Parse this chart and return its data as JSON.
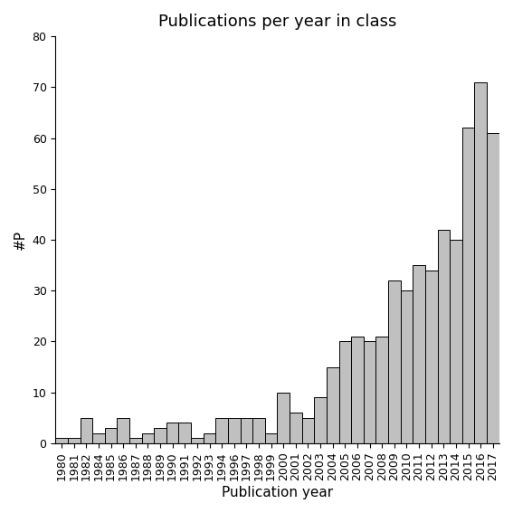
{
  "title": "Publications per year in class",
  "xlabel": "Publication year",
  "ylabel": "#P",
  "ylim": [
    0,
    80
  ],
  "yticks": [
    0,
    10,
    20,
    30,
    40,
    50,
    60,
    70,
    80
  ],
  "bar_color": "#c0c0c0",
  "bar_edgecolor": "#000000",
  "years": [
    1980,
    1981,
    1982,
    1984,
    1985,
    1986,
    1987,
    1988,
    1989,
    1990,
    1991,
    1992,
    1993,
    1994,
    1996,
    1997,
    1998,
    1999,
    2000,
    2001,
    2002,
    2003,
    2004,
    2005,
    2006,
    2007,
    2008,
    2009,
    2010,
    2011,
    2012,
    2013,
    2014,
    2015,
    2016,
    2017
  ],
  "values": [
    1,
    1,
    5,
    2,
    3,
    5,
    1,
    2,
    3,
    4,
    4,
    1,
    2,
    5,
    5,
    5,
    5,
    2,
    10,
    6,
    5,
    9,
    15,
    20,
    21,
    20,
    21,
    32,
    30,
    35,
    34,
    42,
    40,
    62,
    71,
    61
  ],
  "background_color": "#ffffff",
  "title_fontsize": 13,
  "label_fontsize": 11,
  "tick_fontsize": 9
}
